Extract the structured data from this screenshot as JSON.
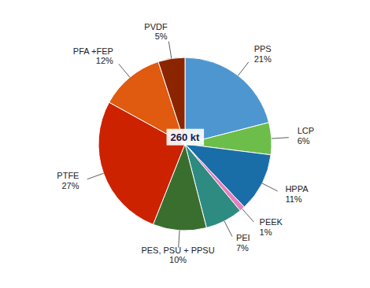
{
  "chart_data": {
    "type": "pie",
    "categories": [
      "PPS",
      "LCP",
      "HPPA",
      "PEEK",
      "PEI",
      "PES, PSU + PPSU",
      "PTFE",
      "PFA +FEP",
      "PVDF"
    ],
    "values": [
      21,
      6,
      11,
      1,
      7,
      10,
      27,
      12,
      5
    ],
    "value_labels": [
      "21%",
      "6%",
      "11%",
      "1%",
      "7%",
      "10%",
      "27%",
      "12%",
      "5%"
    ],
    "colors": [
      "#4E96D0",
      "#6DBD4A",
      "#1A6EA8",
      "#E87EBB",
      "#2E8B82",
      "#3A6E2E",
      "#CC2200",
      "#E05A10",
      "#8B2500"
    ],
    "data_labels": true,
    "annotations": [
      {
        "text": "260 kt"
      }
    ]
  }
}
